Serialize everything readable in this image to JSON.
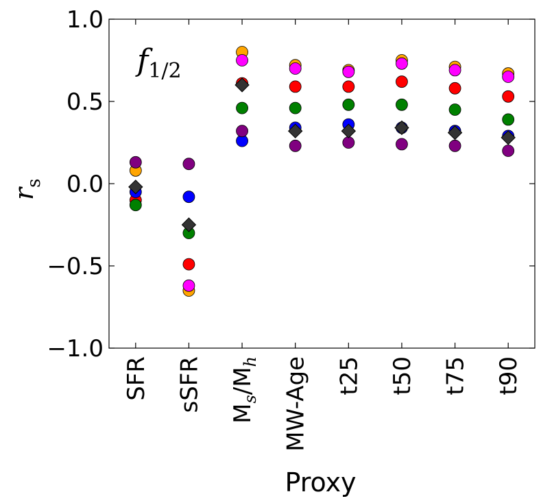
{
  "chart_data": {
    "type": "scatter",
    "annotation": {
      "main": "f",
      "sub": "1/2"
    },
    "xlabel": "Proxy",
    "ylabel": {
      "main": "r",
      "sub": "s"
    },
    "ylim": [
      -1.0,
      1.0
    ],
    "yticks": [
      -1.0,
      -0.5,
      0.0,
      0.5,
      1.0
    ],
    "ytick_labels": [
      "−1.0",
      "−0.5",
      "0.0",
      "0.5",
      "1.0"
    ],
    "categories": [
      "SFR",
      "sSFR",
      "M_s/M_h",
      "MW-Age",
      "t25",
      "t50",
      "t75",
      "t90"
    ],
    "category_labels": [
      {
        "parts": [
          {
            "text": "SFR"
          }
        ]
      },
      {
        "parts": [
          {
            "text": "sSFR"
          }
        ]
      },
      {
        "parts": [
          {
            "text": "M"
          },
          {
            "text": "s",
            "sub": true,
            "italic": true
          },
          {
            "text": "/M"
          },
          {
            "text": "h",
            "sub": true,
            "italic": true
          }
        ]
      },
      {
        "parts": [
          {
            "text": "MW-Age"
          }
        ]
      },
      {
        "parts": [
          {
            "text": "t25"
          }
        ]
      },
      {
        "parts": [
          {
            "text": "t50"
          }
        ]
      },
      {
        "parts": [
          {
            "text": "t75"
          }
        ]
      },
      {
        "parts": [
          {
            "text": "t90"
          }
        ]
      }
    ],
    "grid": false,
    "series": [
      {
        "color": "#ffa500",
        "marker": "circle",
        "values": [
          0.08,
          -0.65,
          0.8,
          0.72,
          0.69,
          0.75,
          0.71,
          0.67
        ]
      },
      {
        "color": "#ff00ff",
        "marker": "circle",
        "values": [
          null,
          -0.62,
          0.75,
          0.7,
          0.68,
          0.73,
          0.69,
          0.65
        ]
      },
      {
        "color": "#ff0000",
        "marker": "circle",
        "values": [
          -0.1,
          -0.49,
          0.61,
          0.59,
          0.59,
          0.62,
          0.58,
          0.53
        ]
      },
      {
        "color": "#008000",
        "marker": "circle",
        "values": [
          -0.13,
          -0.3,
          0.46,
          0.46,
          0.48,
          0.48,
          0.45,
          0.39
        ]
      },
      {
        "color": "#0000ff",
        "marker": "circle",
        "values": [
          -0.05,
          -0.08,
          0.26,
          0.34,
          0.36,
          0.34,
          0.32,
          0.29
        ]
      },
      {
        "color": "#800080",
        "marker": "circle",
        "values": [
          0.13,
          0.12,
          0.32,
          0.23,
          0.25,
          0.24,
          0.23,
          0.2
        ]
      },
      {
        "color": "#333333",
        "marker": "diamond",
        "values": [
          -0.02,
          -0.25,
          0.6,
          0.32,
          0.32,
          0.34,
          0.31,
          0.28
        ]
      }
    ]
  }
}
